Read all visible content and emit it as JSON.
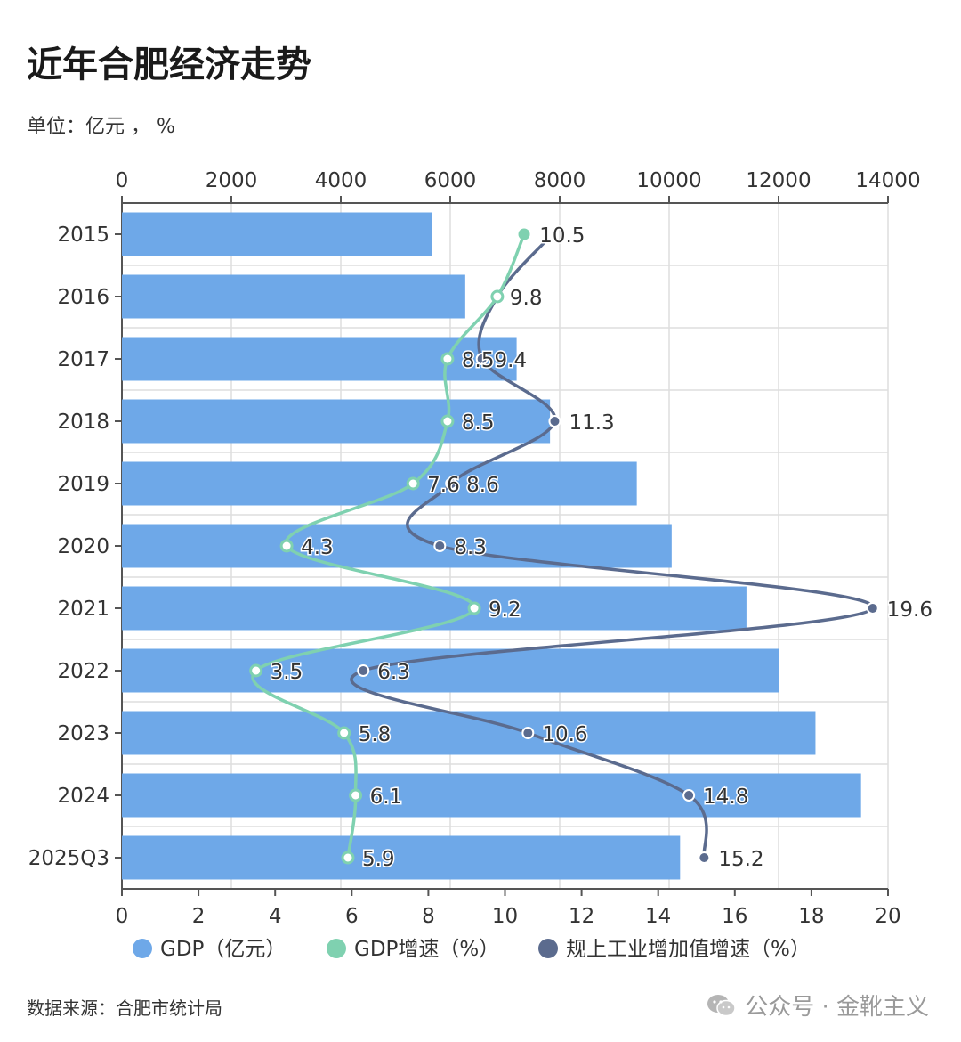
{
  "header": {
    "title": "近年合肥经济走势",
    "unit": "单位：亿元 ， %"
  },
  "footer": {
    "source": "数据来源：合肥市统计局",
    "brand": "公众号 · 金靴主义",
    "brand_icon": "wechat-icon"
  },
  "colors": {
    "gdp_bar": "#6ea8e8",
    "gdp_growth": "#7fd1b0",
    "industry_growth": "#5b6b8e",
    "grid": "#dedede",
    "axis": "#555555"
  },
  "chart_data": {
    "type": "bar",
    "orientation": "horizontal",
    "categories": [
      "2015",
      "2016",
      "2017",
      "2018",
      "2019",
      "2020",
      "2021",
      "2022",
      "2023",
      "2024",
      "2025Q3"
    ],
    "x_top": {
      "min": 0,
      "max": 14000,
      "ticks": [
        0,
        2000,
        4000,
        6000,
        8000,
        10000,
        12000,
        14000
      ]
    },
    "x_bottom": {
      "min": 0,
      "max": 20,
      "ticks": [
        0,
        2,
        4,
        6,
        8,
        10,
        12,
        14,
        16,
        18,
        20
      ]
    },
    "grid": true,
    "legend_position": "bottom",
    "series": [
      {
        "name": "GDP（亿元）",
        "kind": "bar",
        "axis": "top",
        "values": [
          5660,
          6274,
          7213,
          7823,
          9409,
          10046,
          11413,
          12014,
          12674,
          13507,
          10200
        ]
      },
      {
        "name": "GDP增速（%）",
        "kind": "line",
        "axis": "bottom",
        "values": [
          10.5,
          9.8,
          8.5,
          8.5,
          7.6,
          4.3,
          9.2,
          3.5,
          5.8,
          6.1,
          5.9
        ]
      },
      {
        "name": "规上工业增加值增速（%）",
        "kind": "line",
        "axis": "bottom",
        "values": [
          null,
          9.8,
          9.4,
          11.3,
          8.6,
          8.3,
          19.6,
          6.3,
          10.6,
          14.8,
          15.2
        ]
      }
    ],
    "point_labels": [
      [
        "2015",
        "10.5"
      ],
      [
        "2016",
        "9.8"
      ],
      [
        "2017",
        "8.59.4"
      ],
      [
        "2018",
        "8.5",
        "11.3"
      ],
      [
        "2019",
        "7.6",
        "8.6"
      ],
      [
        "2020",
        "4.3",
        "8.3"
      ],
      [
        "2021",
        "9.2",
        "19.6"
      ],
      [
        "2022",
        "3.5",
        "6.3"
      ],
      [
        "2023",
        "5.8",
        "10.6"
      ],
      [
        "2024",
        "6.1",
        "14.8"
      ],
      [
        "2025Q3",
        "5.9",
        "15.2"
      ]
    ]
  }
}
